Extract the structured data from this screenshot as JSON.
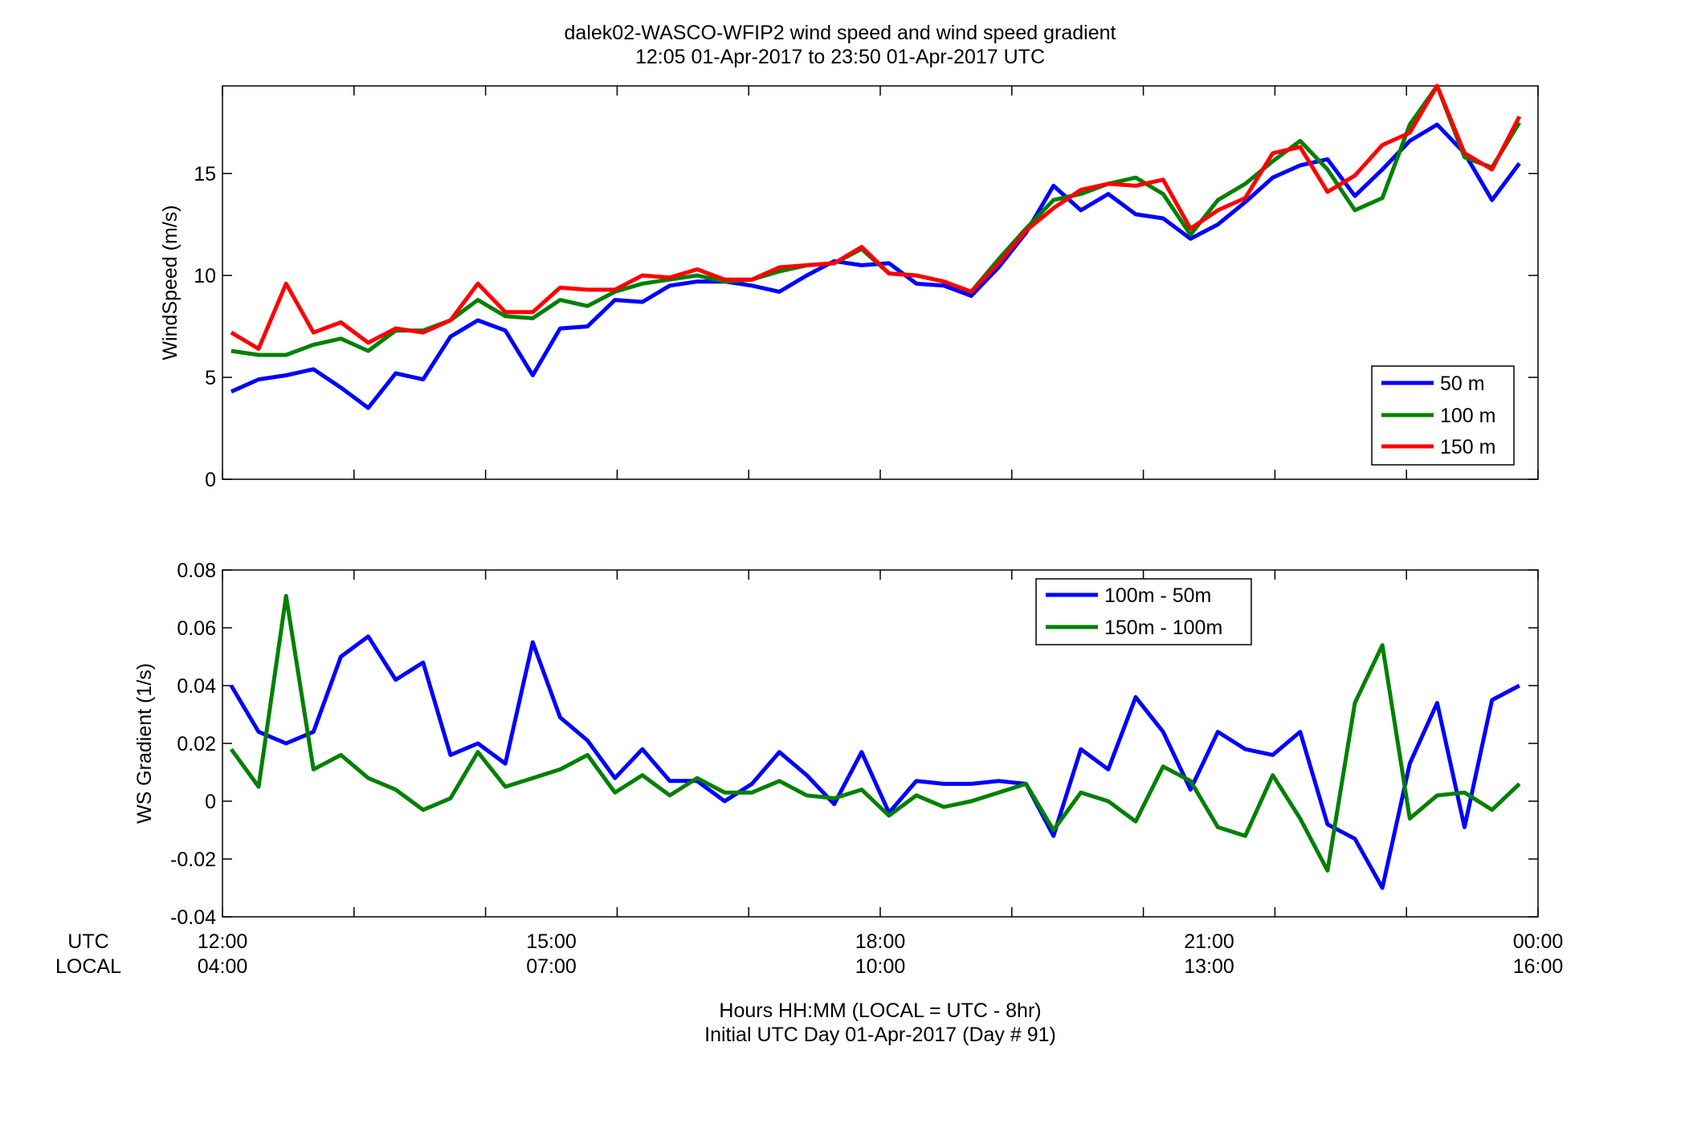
{
  "figure": {
    "title_line1": "dalek02-WASCO-WFIP2  wind speed and wind speed gradient",
    "title_line2": "12:05 01-Apr-2017 to 23:50 01-Apr-2017  UTC",
    "footer_line1": "Hours HH:MM  (LOCAL = UTC - 8hr)",
    "footer_line2": "Initial UTC Day 01-Apr-2017 (Day # 91)",
    "row_label_utc": "UTC",
    "row_label_local": "LOCAL",
    "utc_ticks": [
      "12:00",
      "15:00",
      "18:00",
      "21:00",
      "00:00"
    ],
    "local_ticks": [
      "04:00",
      "07:00",
      "10:00",
      "13:00",
      "16:00"
    ]
  },
  "chart_data": [
    {
      "type": "line",
      "ylabel": "WindSpeed (m/s)",
      "xlim": [
        12.0,
        24.0
      ],
      "ylim": [
        0,
        19.3
      ],
      "yticks": [
        0,
        5,
        10,
        15
      ],
      "xticks": [
        12.0,
        13.2,
        14.4,
        15.6,
        16.8,
        18.0,
        19.2,
        20.4,
        21.6,
        22.8,
        24.0
      ],
      "legend_position": "bottom-right",
      "x": [
        12.08,
        12.33,
        12.58,
        12.83,
        13.08,
        13.33,
        13.58,
        13.83,
        14.08,
        14.33,
        14.58,
        14.83,
        15.08,
        15.33,
        15.58,
        15.83,
        16.08,
        16.33,
        16.58,
        16.83,
        17.08,
        17.33,
        17.58,
        17.83,
        18.08,
        18.33,
        18.58,
        18.83,
        19.08,
        19.33,
        19.58,
        19.83,
        20.08,
        20.33,
        20.58,
        20.83,
        21.08,
        21.33,
        21.58,
        21.83,
        22.08,
        22.33,
        22.58,
        22.83,
        23.08,
        23.33,
        23.58,
        23.83
      ],
      "series": [
        {
          "name": "50 m",
          "color": "#0000ff",
          "values": [
            4.3,
            4.9,
            5.1,
            5.4,
            4.5,
            3.5,
            5.2,
            4.9,
            7.0,
            7.8,
            7.3,
            5.1,
            7.4,
            7.5,
            8.8,
            8.7,
            9.5,
            9.7,
            9.7,
            9.5,
            9.2,
            10.0,
            10.7,
            10.5,
            10.6,
            9.6,
            9.5,
            9.0,
            10.4,
            12.1,
            14.4,
            13.2,
            14.0,
            13.0,
            12.8,
            11.8,
            12.5,
            13.6,
            14.8,
            15.4,
            15.7,
            13.9,
            15.2,
            16.6,
            17.4,
            16.0,
            13.7,
            15.5
          ]
        },
        {
          "name": "100 m",
          "color": "#008000",
          "values": [
            6.3,
            6.1,
            6.1,
            6.6,
            6.9,
            6.3,
            7.3,
            7.3,
            7.8,
            8.8,
            8.0,
            7.9,
            8.8,
            8.5,
            9.2,
            9.6,
            9.8,
            10.0,
            9.7,
            9.8,
            10.2,
            10.5,
            10.6,
            11.3,
            10.1,
            10.0,
            9.7,
            9.2,
            10.8,
            12.3,
            13.7,
            14.0,
            14.5,
            14.8,
            14.0,
            12.0,
            13.7,
            14.5,
            15.6,
            16.6,
            15.2,
            13.2,
            13.8,
            17.4,
            19.3,
            15.8,
            15.3,
            17.5
          ]
        },
        {
          "name": "150 m",
          "color": "#ff0000",
          "values": [
            7.2,
            6.4,
            9.6,
            7.2,
            7.7,
            6.7,
            7.4,
            7.2,
            7.8,
            9.6,
            8.2,
            8.2,
            9.4,
            9.3,
            9.3,
            10.0,
            9.9,
            10.3,
            9.8,
            9.8,
            10.4,
            10.5,
            10.6,
            11.4,
            10.1,
            10.0,
            9.7,
            9.2,
            10.6,
            12.2,
            13.3,
            14.2,
            14.5,
            14.4,
            14.7,
            12.3,
            13.2,
            13.8,
            16.0,
            16.3,
            14.1,
            14.9,
            16.4,
            17.0,
            19.3,
            16.0,
            15.2,
            17.8
          ]
        }
      ]
    },
    {
      "type": "line",
      "ylabel": "WS Gradient (1/s)",
      "xlim": [
        12.0,
        24.0
      ],
      "ylim": [
        -0.04,
        0.08
      ],
      "yticks": [
        -0.04,
        -0.02,
        0,
        0.02,
        0.04,
        0.06,
        0.08
      ],
      "ytick_labels": [
        "-0.04",
        "-0.02",
        "0",
        "0.02",
        "0.04",
        "0.06",
        "0.08"
      ],
      "xticks": [
        12.0,
        13.2,
        14.4,
        15.6,
        16.8,
        18.0,
        19.2,
        20.4,
        21.6,
        22.8,
        24.0
      ],
      "legend_position": "top-right",
      "x": [
        12.08,
        12.33,
        12.58,
        12.83,
        13.08,
        13.33,
        13.58,
        13.83,
        14.08,
        14.33,
        14.58,
        14.83,
        15.08,
        15.33,
        15.58,
        15.83,
        16.08,
        16.33,
        16.58,
        16.83,
        17.08,
        17.33,
        17.58,
        17.83,
        18.08,
        18.33,
        18.58,
        18.83,
        19.08,
        19.33,
        19.58,
        19.83,
        20.08,
        20.33,
        20.58,
        20.83,
        21.08,
        21.33,
        21.58,
        21.83,
        22.08,
        22.33,
        22.58,
        22.83,
        23.08,
        23.33,
        23.58,
        23.83
      ],
      "series": [
        {
          "name": "100m - 50m",
          "color": "#0000ff",
          "values": [
            0.04,
            0.024,
            0.02,
            0.024,
            0.05,
            0.057,
            0.042,
            0.048,
            0.016,
            0.02,
            0.013,
            0.055,
            0.029,
            0.021,
            0.008,
            0.018,
            0.007,
            0.007,
            0.0,
            0.006,
            0.017,
            0.009,
            -0.001,
            0.017,
            -0.004,
            0.007,
            0.006,
            0.006,
            0.007,
            0.006,
            -0.012,
            0.018,
            0.011,
            0.036,
            0.024,
            0.004,
            0.024,
            0.018,
            0.016,
            0.024,
            -0.008,
            -0.013,
            -0.03,
            0.013,
            0.034,
            -0.009,
            0.035,
            0.04
          ]
        },
        {
          "name": "150m - 100m",
          "color": "#008000",
          "values": [
            0.018,
            0.005,
            0.071,
            0.011,
            0.016,
            0.008,
            0.004,
            -0.003,
            0.001,
            0.017,
            0.005,
            0.008,
            0.011,
            0.016,
            0.003,
            0.009,
            0.002,
            0.008,
            0.003,
            0.003,
            0.007,
            0.002,
            0.001,
            0.004,
            -0.005,
            0.002,
            -0.002,
            0.0,
            0.003,
            0.006,
            -0.01,
            0.003,
            0.0,
            -0.007,
            0.012,
            0.007,
            -0.009,
            -0.012,
            0.009,
            -0.006,
            -0.024,
            0.034,
            0.054,
            -0.006,
            0.002,
            0.003,
            -0.003,
            0.006
          ]
        }
      ]
    }
  ]
}
